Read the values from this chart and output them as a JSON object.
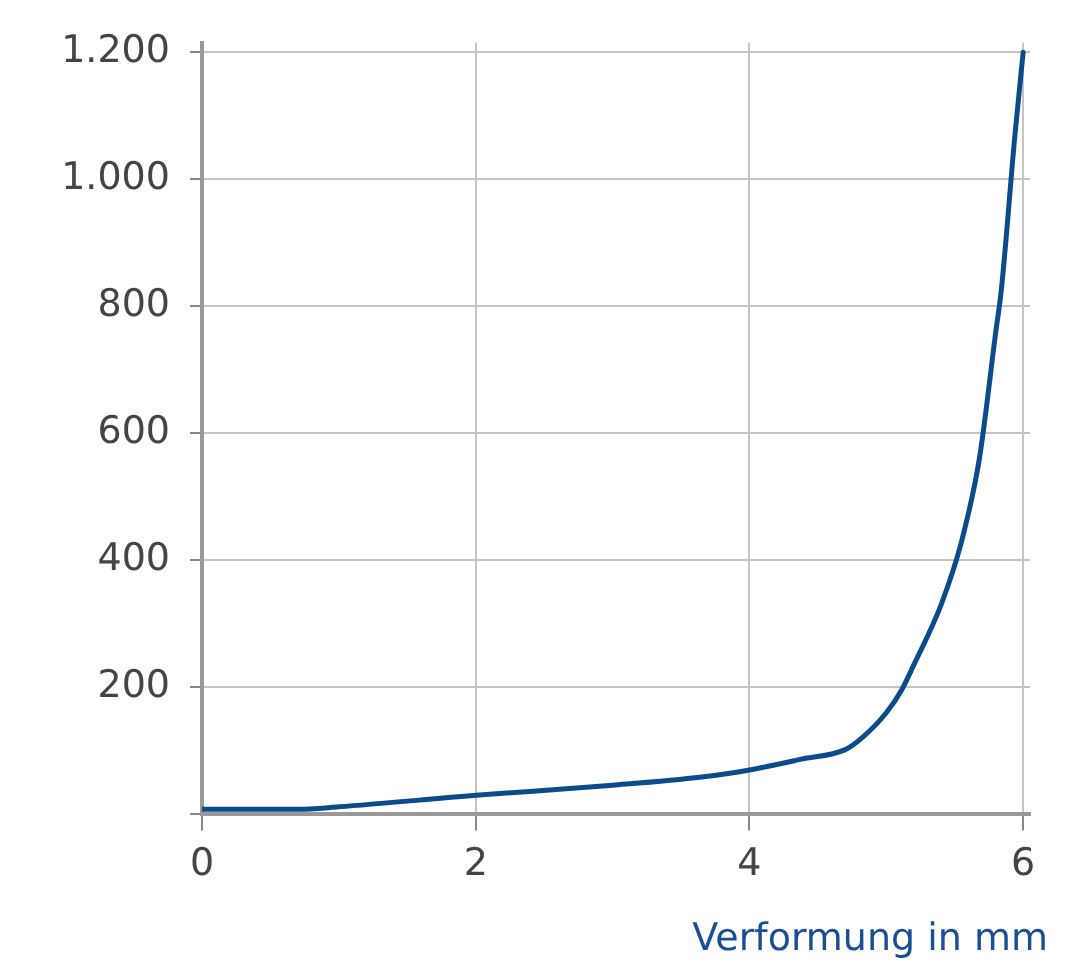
{
  "chart_data": {
    "type": "line",
    "xlabel": "Verformung in mm",
    "x": [
      0,
      0.7,
      1,
      2,
      3,
      3.65,
      4,
      4.38,
      4.7,
      4.82,
      5,
      5.11,
      5.2,
      5.4,
      5.55,
      5.68,
      5.8,
      5.84,
      5.94,
      6
    ],
    "series": [
      {
        "color": "#0b4a8b",
        "values": [
          8,
          8,
          12,
          30,
          46,
          59,
          70,
          87,
          102,
          120,
          160,
          195,
          235,
          330,
          430,
          560,
          760,
          825,
          1070,
          1200
        ]
      }
    ],
    "xlim": [
      0,
      6.05
    ],
    "xticks": [
      0,
      2,
      4,
      6
    ],
    "ylim": [
      0,
      1215
    ],
    "yticks": [
      {
        "value": 0,
        "label": null
      },
      200,
      400,
      600,
      800,
      {
        "value": 1000,
        "label": "1.000"
      },
      {
        "value": 1200,
        "label": "1.200"
      }
    ],
    "grid": true,
    "legend": false,
    "marker": "none",
    "line_style": "solid"
  }
}
